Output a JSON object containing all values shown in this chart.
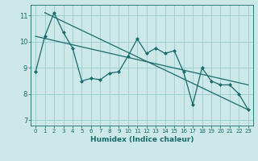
{
  "title": "",
  "xlabel": "Humidex (Indice chaleur)",
  "ylabel": "",
  "bg_color": "#cce8e8",
  "grid_color": "#99cccc",
  "line_color": "#1a6b6b",
  "xlim": [
    -0.5,
    23.5
  ],
  "ylim": [
    6.8,
    11.4
  ],
  "yticks": [
    7,
    8,
    9,
    10,
    11
  ],
  "xticks": [
    0,
    1,
    2,
    3,
    4,
    5,
    6,
    7,
    8,
    9,
    10,
    11,
    12,
    13,
    14,
    15,
    16,
    17,
    18,
    19,
    20,
    21,
    22,
    23
  ],
  "main_x": [
    0,
    1,
    2,
    3,
    4,
    5,
    6,
    7,
    8,
    9,
    10,
    11,
    12,
    13,
    14,
    15,
    16,
    17,
    18,
    19,
    20,
    21,
    22,
    23
  ],
  "main_y": [
    8.85,
    10.2,
    11.1,
    10.35,
    9.75,
    8.5,
    8.6,
    8.55,
    8.8,
    8.85,
    9.45,
    10.1,
    9.55,
    9.75,
    9.55,
    9.65,
    8.85,
    7.6,
    9.0,
    8.5,
    8.35,
    8.35,
    8.0,
    7.4
  ],
  "trend1_x": [
    1,
    23
  ],
  "trend1_y": [
    11.1,
    7.4
  ],
  "trend2_x": [
    0,
    23
  ],
  "trend2_y": [
    10.2,
    8.35
  ]
}
